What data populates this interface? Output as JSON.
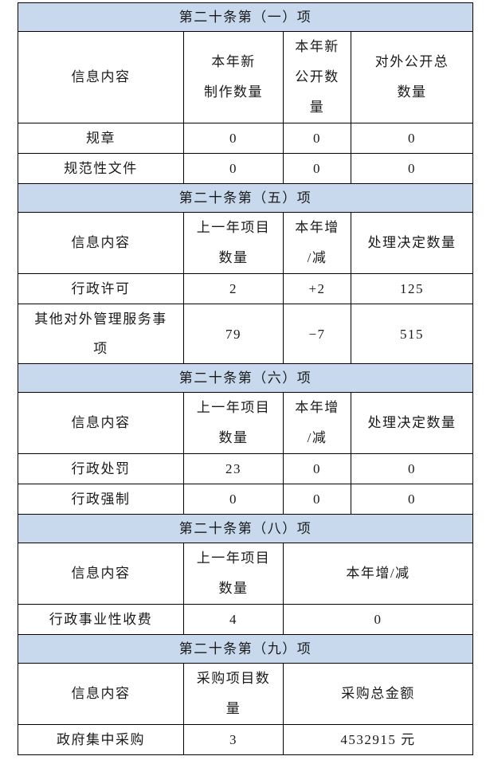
{
  "colors": {
    "header_bg": "#c8d9ee",
    "border": "#000000",
    "text": "#1a1a1a",
    "page_bg": "#ffffff"
  },
  "table": {
    "sections": [
      {
        "title": "第二十条第（一）项",
        "columns": [
          "信息内容",
          "本年新\n制作数量",
          "本年新\n公开数\n量",
          "对外公开总\n数量"
        ],
        "merge_last": false,
        "rows": [
          [
            "规章",
            "0",
            "0",
            "0"
          ],
          [
            "规范性文件",
            "0",
            "0",
            "0"
          ]
        ]
      },
      {
        "title": "第二十条第（五）项",
        "columns": [
          "信息内容",
          "上一年项目\n数量",
          "本年增\n/减",
          "处理决定数量"
        ],
        "merge_last": false,
        "rows": [
          [
            "行政许可",
            "2",
            "+2",
            "125"
          ],
          [
            "其他对外管理服务事\n项",
            "79",
            "−7",
            "515"
          ]
        ]
      },
      {
        "title": "第二十条第（六）项",
        "columns": [
          "信息内容",
          "上一年项目\n数量",
          "本年增\n/减",
          "处理决定数量"
        ],
        "merge_last": false,
        "rows": [
          [
            "行政处罚",
            "23",
            "0",
            "0"
          ],
          [
            "行政强制",
            "0",
            "0",
            "0"
          ]
        ]
      },
      {
        "title": "第二十条第（八）项",
        "columns": [
          "信息内容",
          "上一年项目\n数量",
          "本年增/减"
        ],
        "merge_last": true,
        "rows": [
          [
            "行政事业性收费",
            "4",
            "0"
          ]
        ]
      },
      {
        "title": "第二十条第（九）项",
        "columns": [
          "信息内容",
          "采购项目数\n量",
          "采购总金额"
        ],
        "merge_last": true,
        "rows": [
          [
            "政府集中采购",
            "3",
            "4532915 元"
          ]
        ]
      }
    ]
  }
}
